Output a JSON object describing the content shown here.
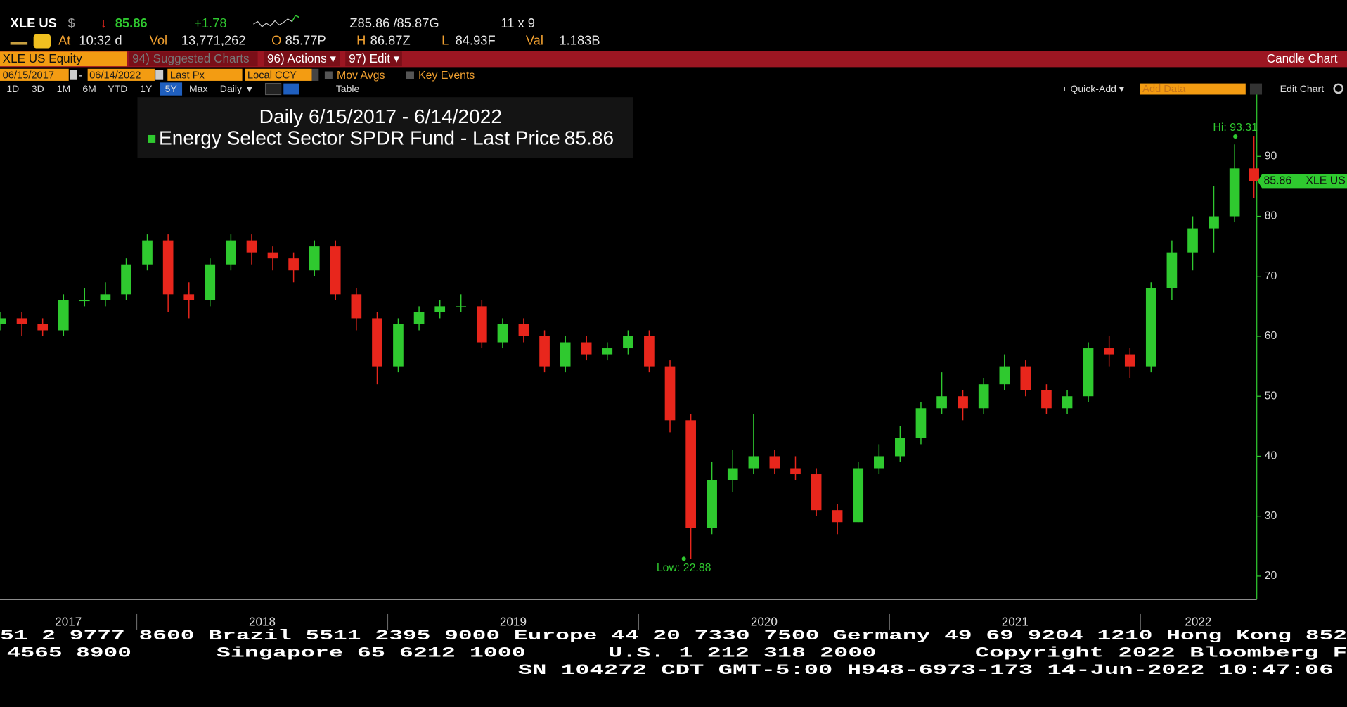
{
  "header": {
    "ticker": "XLE US",
    "currency": "$",
    "arrow": "↓",
    "last": "85.86",
    "change": "+1.78",
    "bid_ask": "Z85.86 /85.87G",
    "size": "11 x 9",
    "stats": [
      {
        "label": "At",
        "value": "10:32 d"
      },
      {
        "label": "Vol",
        "value": "13,771,262"
      },
      {
        "label": "O",
        "value": "85.77P"
      },
      {
        "label": "H",
        "value": "86.87Z"
      },
      {
        "label": "L",
        "value": "84.93F"
      },
      {
        "label": "Val",
        "value": "1.183B"
      }
    ]
  },
  "menu": {
    "security": "XLE US Equity",
    "items": [
      "94) Suggested Charts",
      "96) Actions ▾",
      "97) Edit ▾"
    ],
    "chart_type": "Candle Chart"
  },
  "controls": {
    "start": "06/15/2017",
    "sep": "-",
    "end": "06/14/2022",
    "field": "Last Px",
    "currency": "Local CCY",
    "options": [
      "Mov Avgs",
      "Key Events"
    ],
    "ranges": [
      "1D",
      "3D",
      "1M",
      "6M",
      "YTD",
      "1Y",
      "5Y",
      "Max"
    ],
    "period": "Daily ▼",
    "table": "Table",
    "quick_add": "+ Quick-Add ▾",
    "add_data": "Add Data",
    "edit_chart": "Edit Chart"
  },
  "chart_data": {
    "type": "candlestick",
    "title": "Daily 6/15/2017 - 6/14/2022",
    "name": "Energy Select Sector SPDR Fund - Last Price",
    "up_color": "#2fc92f",
    "down_color": "#e8261c",
    "legend_color": "#2fc92f",
    "x": [
      2017.458,
      2017.542,
      2017.625,
      2017.708,
      2017.792,
      2017.875,
      2017.958,
      2018.042,
      2018.125,
      2018.208,
      2018.292,
      2018.375,
      2018.458,
      2018.542,
      2018.625,
      2018.708,
      2018.792,
      2018.875,
      2018.958,
      2019.042,
      2019.125,
      2019.208,
      2019.292,
      2019.375,
      2019.458,
      2019.542,
      2019.625,
      2019.708,
      2019.792,
      2019.875,
      2019.958,
      2020.042,
      2020.125,
      2020.208,
      2020.292,
      2020.375,
      2020.458,
      2020.542,
      2020.625,
      2020.708,
      2020.792,
      2020.875,
      2020.958,
      2021.042,
      2021.125,
      2021.208,
      2021.292,
      2021.375,
      2021.458,
      2021.542,
      2021.625,
      2021.708,
      2021.792,
      2021.875,
      2021.958,
      2022.042,
      2022.125,
      2022.208,
      2022.292,
      2022.375,
      2022.452
    ],
    "open": [
      62,
      63,
      62,
      61,
      66,
      66,
      67,
      72,
      76,
      67,
      66,
      72,
      76,
      74,
      73,
      71,
      75,
      67,
      63,
      55,
      62,
      64,
      65,
      65,
      59,
      62,
      60,
      55,
      59,
      57,
      58,
      60,
      55,
      46,
      28,
      36,
      38,
      40,
      38,
      37,
      31,
      29,
      38,
      40,
      43,
      48,
      50,
      48,
      52,
      55,
      51,
      48,
      50,
      58,
      57,
      55,
      68,
      74,
      78,
      80,
      88
    ],
    "high": [
      64,
      64,
      63,
      67,
      68,
      69,
      73,
      77,
      77,
      69,
      73,
      77,
      77,
      75,
      74,
      76,
      76,
      68,
      64,
      63,
      65,
      66,
      67,
      66,
      63,
      63,
      61,
      60,
      60,
      59,
      61,
      61,
      56,
      47,
      39,
      41,
      47,
      41,
      40,
      38,
      32,
      39,
      42,
      45,
      49,
      54,
      51,
      53,
      57,
      56,
      52,
      51,
      59,
      60,
      58,
      69,
      76,
      80,
      85,
      92,
      93.31
    ],
    "low": [
      61,
      60,
      60,
      60,
      65,
      65,
      66,
      71,
      64,
      63,
      65,
      71,
      72,
      71,
      69,
      70,
      66,
      61,
      52,
      54,
      61,
      63,
      64,
      58,
      58,
      59,
      54,
      54,
      56,
      56,
      57,
      54,
      44,
      22.88,
      27,
      34,
      37,
      37,
      36,
      30,
      27,
      29,
      37,
      39,
      42,
      47,
      46,
      47,
      51,
      50,
      47,
      47,
      49,
      55,
      53,
      54,
      66,
      71,
      74,
      79,
      83
    ],
    "close": [
      63,
      62,
      61,
      66,
      66,
      67,
      72,
      76,
      67,
      66,
      72,
      76,
      74,
      73,
      71,
      75,
      67,
      63,
      55,
      62,
      64,
      65,
      65,
      59,
      62,
      60,
      55,
      59,
      57,
      58,
      60,
      55,
      46,
      28,
      36,
      38,
      40,
      38,
      37,
      31,
      29,
      38,
      40,
      43,
      48,
      50,
      48,
      52,
      55,
      51,
      48,
      50,
      58,
      57,
      55,
      68,
      74,
      78,
      80,
      88,
      85.86
    ],
    "xlim": [
      2017.455,
      2022.46
    ],
    "xticks": [
      2017,
      2018,
      2019,
      2020,
      2021,
      2022
    ],
    "ylim": [
      16.1,
      100.3
    ],
    "yticks": [
      20,
      30,
      40,
      50,
      60,
      70,
      80,
      90
    ],
    "axis_color": "#2fc92f",
    "annotations": [
      {
        "label": "Hi: 93.31",
        "x": 2022.378,
        "value": 93.31
      },
      {
        "label": "Low: 22.88",
        "x": 2020.18,
        "value": 22.88
      }
    ],
    "last_tag": "XLE US"
  },
  "footer": {
    "line1": "51 2 9777 8600 Brazil 5511 2395 9000 Europe 44 20 7330 7500 Germany 49 69 9204 1210 Hong Kong 852",
    "line2": [
      "4565 8900",
      "Singapore 65 6212 1000",
      "U.S. 1 212 318 2000",
      "Copyright 2022 Bloomberg F"
    ],
    "line3": "SN 104272 CDT  GMT-5:00 H948-6973-173 14-Jun-2022 10:47:06"
  }
}
